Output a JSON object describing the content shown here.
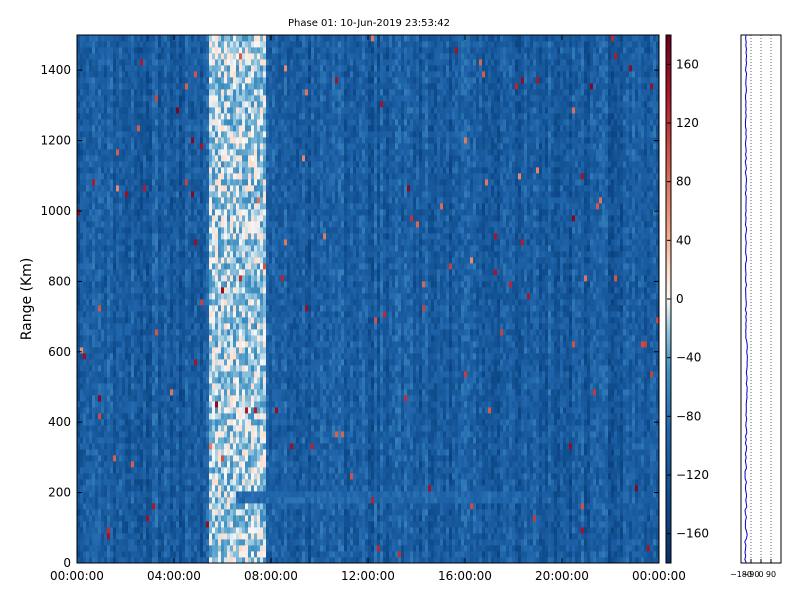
{
  "chart_data": [
    {
      "type": "heatmap",
      "title": "Phase 01: 10-Jun-2019 23:53:42",
      "xlabel": "",
      "ylabel": "Range (Km)",
      "x_ticks": [
        "00:00:00",
        "04:00:00",
        "08:00:00",
        "12:00:00",
        "16:00:00",
        "20:00:00",
        "00:00:00"
      ],
      "x_range_hours": [
        0,
        24
      ],
      "y_ticks": [
        0,
        200,
        400,
        600,
        800,
        1000,
        1200,
        1400
      ],
      "ylim": [
        0,
        1500
      ],
      "colorbar": {
        "ticks": [
          160,
          120,
          80,
          40,
          0,
          -40,
          -80,
          -120,
          -160
        ],
        "range": [
          -180,
          180
        ],
        "colormap": "RdBu_r"
      },
      "features": [
        {
          "label": "bright band",
          "x_start_hours": 5.5,
          "x_end_hours": 7.8,
          "value": -20
        },
        {
          "label": "layer",
          "x_start_hours": 6.5,
          "x_end_hours": 18.5,
          "y_km": 190,
          "value": -90
        }
      ],
      "background_value": -110
    },
    {
      "type": "line",
      "title": "",
      "x_ticks": [
        "-180",
        "-90",
        "0",
        "90"
      ],
      "xlim": [
        -180,
        180
      ],
      "ylim": [
        0,
        1500
      ],
      "grid": "vertical dotted",
      "series": [
        {
          "color": "#0000cc",
          "mean_value": -135
        }
      ]
    }
  ]
}
